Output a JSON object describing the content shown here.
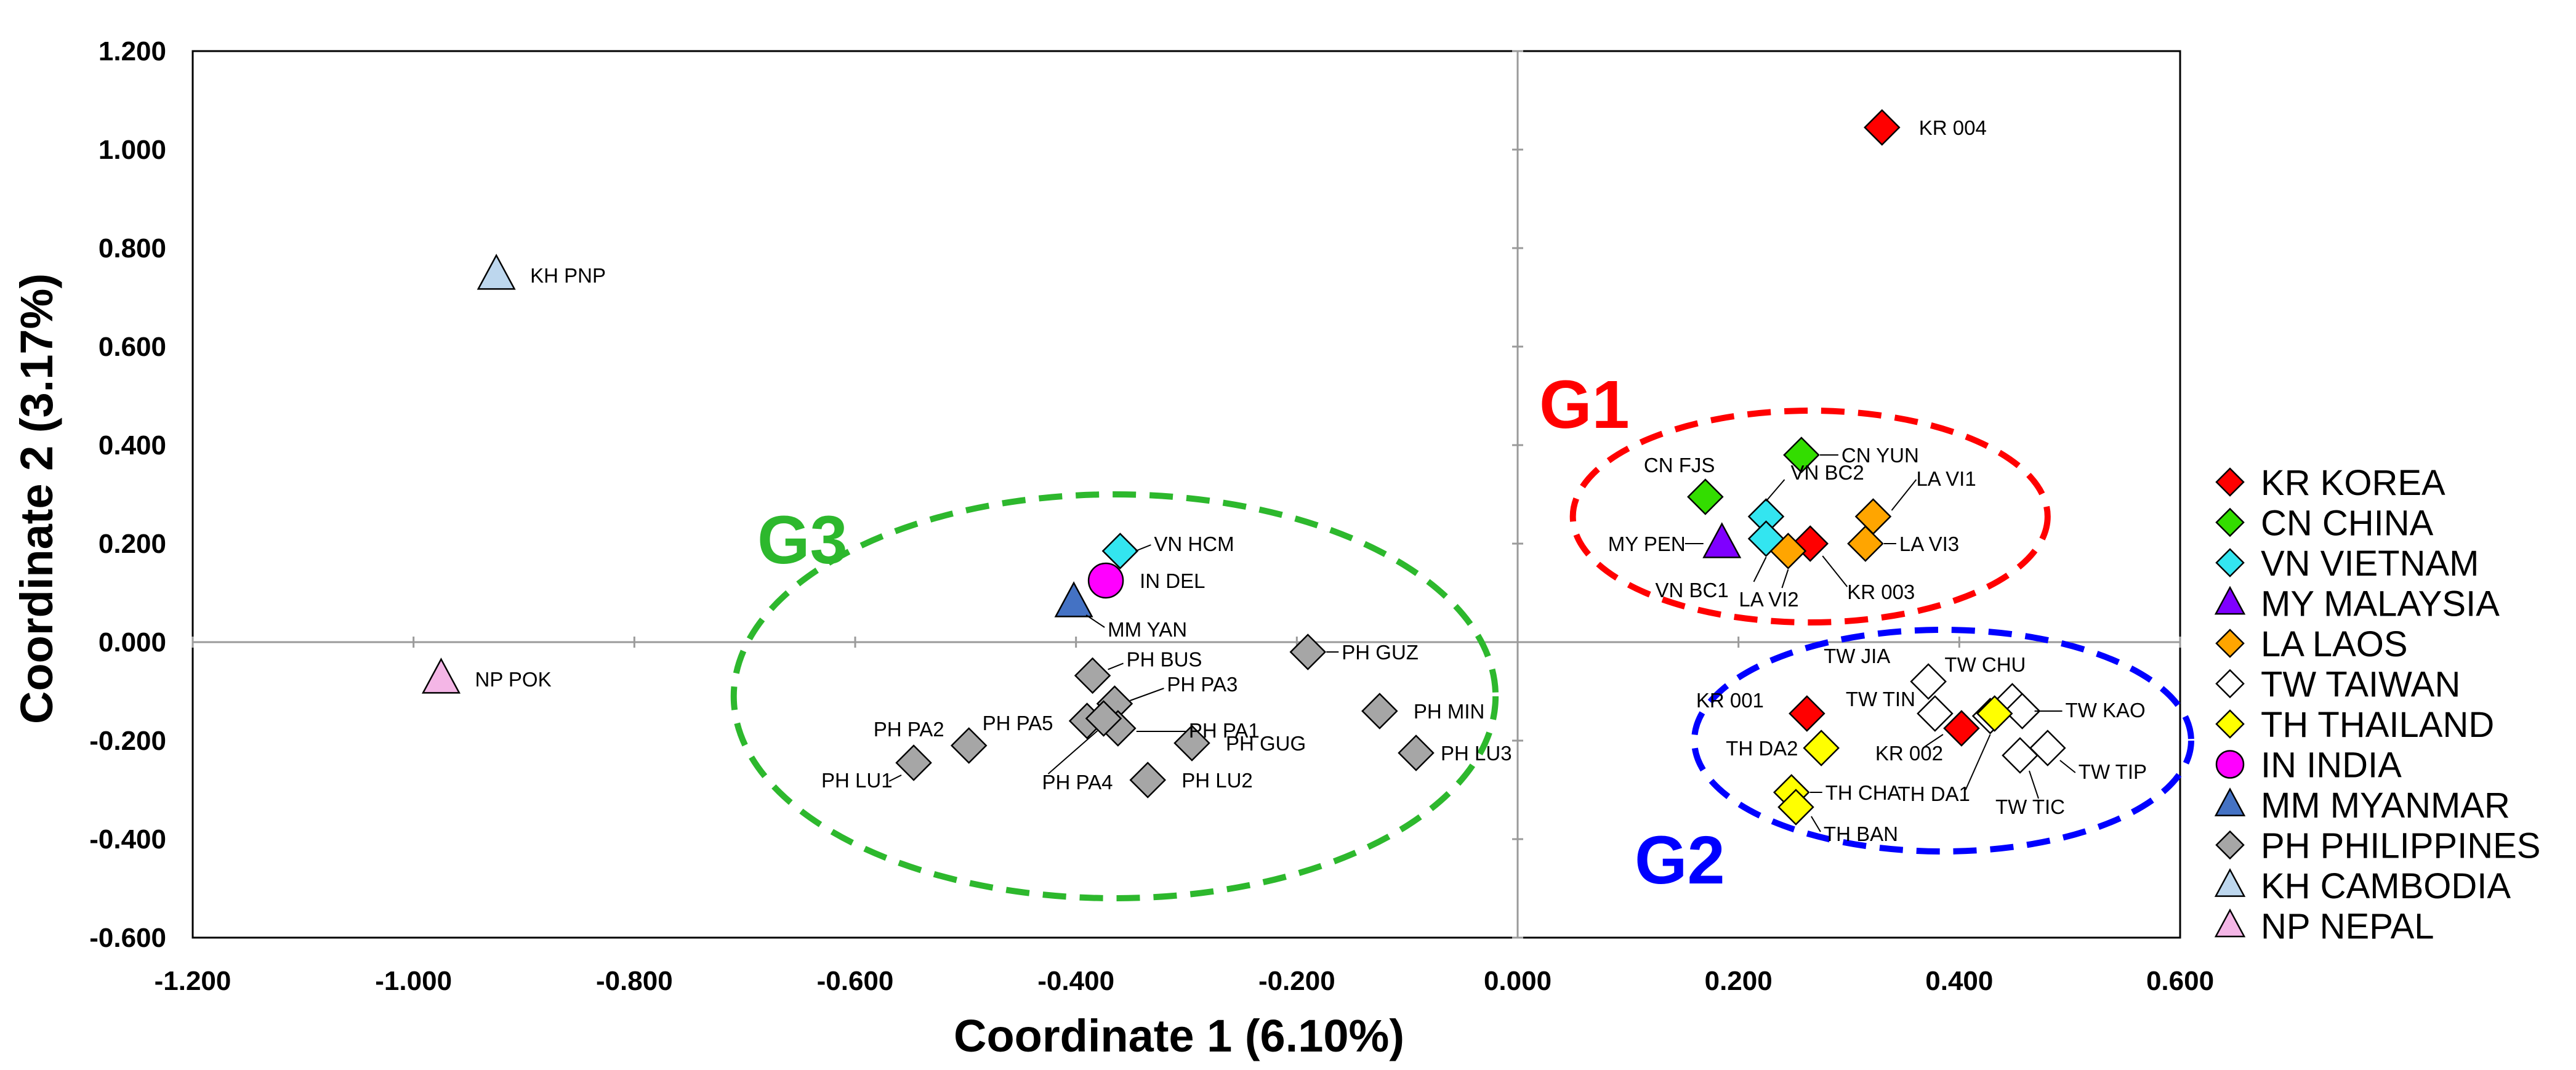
{
  "chart_data": {
    "type": "scatter",
    "title": "",
    "xlabel": "Coordinate 1 (6.10%)",
    "ylabel": "Coordinate 2 (3.17%)",
    "xlim": [
      -1.2,
      0.6
    ],
    "ylim": [
      -0.6,
      1.2
    ],
    "xticks": [
      "-1.200",
      "-1.000",
      "-0.800",
      "-0.600",
      "-0.400",
      "-0.200",
      "0.000",
      "0.200",
      "0.400",
      "0.600"
    ],
    "yticks": [
      "1.200",
      "1.000",
      "0.800",
      "0.600",
      "0.400",
      "0.200",
      "0.000",
      "-0.200",
      "-0.400",
      "-0.600"
    ],
    "legend_position": "right",
    "series": [
      {
        "name": "KR KOREA",
        "marker": "diamond",
        "color": "#FF0000",
        "points": [
          {
            "label": "KR 004",
            "x": 0.33,
            "y": 1.045
          },
          {
            "label": "KR 003",
            "x": 0.265,
            "y": 0.2
          },
          {
            "label": "KR 001",
            "x": 0.262,
            "y": -0.145
          },
          {
            "label": "KR 002",
            "x": 0.402,
            "y": -0.175
          }
        ]
      },
      {
        "name": "CN CHINA",
        "marker": "diamond",
        "color": "#33DD00",
        "points": [
          {
            "label": "CN YUN",
            "x": 0.257,
            "y": 0.38
          },
          {
            "label": "CN FJS",
            "x": 0.17,
            "y": 0.295
          }
        ]
      },
      {
        "name": "VN VIETNAM",
        "marker": "diamond",
        "color": "#33E5F0",
        "points": [
          {
            "label": "VN BC2",
            "x": 0.225,
            "y": 0.255
          },
          {
            "label": "VN BC1",
            "x": 0.225,
            "y": 0.21
          },
          {
            "label": "VN HCM",
            "x": -0.36,
            "y": 0.185
          }
        ]
      },
      {
        "name": "MY MALAYSIA",
        "marker": "triangle",
        "color": "#7F00FF",
        "points": [
          {
            "label": "MY PEN",
            "x": 0.185,
            "y": 0.2
          }
        ]
      },
      {
        "name": "LA LAOS",
        "marker": "diamond",
        "color": "#FFA500",
        "points": [
          {
            "label": "LA VI1",
            "x": 0.322,
            "y": 0.255
          },
          {
            "label": "LA VI2",
            "x": 0.245,
            "y": 0.185
          },
          {
            "label": "LA VI3",
            "x": 0.315,
            "y": 0.2
          }
        ]
      },
      {
        "name": "TW TAIWAN",
        "marker": "diamond",
        "color": "#FFFFFF",
        "points": [
          {
            "label": "TW JIA",
            "x": 0.372,
            "y": -0.08
          },
          {
            "label": "TW TIN",
            "x": 0.378,
            "y": -0.145
          },
          {
            "label": "TW CHU",
            "x": 0.448,
            "y": -0.12
          },
          {
            "label": "TW KAO",
            "x": 0.457,
            "y": -0.14
          },
          {
            "label": "TW TIP",
            "x": 0.48,
            "y": -0.215
          },
          {
            "label": "TW TIC",
            "x": 0.455,
            "y": -0.23
          },
          {
            "label": "TH DA1",
            "x": 0.428,
            "y": -0.15
          }
        ]
      },
      {
        "name": "TH THAILAND",
        "marker": "diamond",
        "color": "#FFFF00",
        "points": [
          {
            "label": "TH DA2",
            "x": 0.275,
            "y": -0.215
          },
          {
            "label": "TH CHA",
            "x": 0.248,
            "y": -0.305
          },
          {
            "label": "TH BAN",
            "x": 0.252,
            "y": -0.335
          },
          {
            "label": "",
            "x": 0.432,
            "y": -0.145
          }
        ]
      },
      {
        "name": "IN INDIA",
        "marker": "circle",
        "color": "#FF00FF",
        "points": [
          {
            "label": "IN DEL",
            "x": -0.373,
            "y": 0.125
          }
        ]
      },
      {
        "name": "MM MYANMAR",
        "marker": "triangle",
        "color": "#4472C4",
        "points": [
          {
            "label": "MM YAN",
            "x": -0.402,
            "y": 0.08
          }
        ]
      },
      {
        "name": "PH PHILIPPINES",
        "marker": "diamond",
        "color": "#A6A6A6",
        "points": [
          {
            "label": "PH GUZ",
            "x": -0.19,
            "y": -0.02
          },
          {
            "label": "PH BUS",
            "x": -0.385,
            "y": -0.068
          },
          {
            "label": "PH PA3",
            "x": -0.365,
            "y": -0.125
          },
          {
            "label": "PH PA5",
            "x": -0.39,
            "y": -0.16
          },
          {
            "label": "PH PA1",
            "x": -0.362,
            "y": -0.175
          },
          {
            "label": "PH PA4",
            "x": -0.375,
            "y": -0.155
          },
          {
            "label": "PH GUG",
            "x": -0.295,
            "y": -0.205
          },
          {
            "label": "PH MIN",
            "x": -0.125,
            "y": -0.14
          },
          {
            "label": "PH LU3",
            "x": -0.092,
            "y": -0.225
          },
          {
            "label": "PH PA2",
            "x": -0.497,
            "y": -0.21
          },
          {
            "label": "PH LU1",
            "x": -0.547,
            "y": -0.245
          },
          {
            "label": "PH LU2",
            "x": -0.335,
            "y": -0.28
          }
        ]
      },
      {
        "name": "KH CAMBODIA",
        "marker": "triangle",
        "color": "#BDD7EE",
        "points": [
          {
            "label": "KH PNP",
            "x": -0.925,
            "y": 0.745
          }
        ]
      },
      {
        "name": "NP NEPAL",
        "marker": "triangle",
        "color": "#F4B6E6",
        "points": [
          {
            "label": "NP POK",
            "x": -0.975,
            "y": -0.075
          }
        ]
      }
    ],
    "groups": [
      {
        "label": "G1",
        "color": "#FF0000",
        "center": [
          0.265,
          0.255
        ],
        "radii": [
          0.215,
          0.215
        ]
      },
      {
        "label": "G2",
        "color": "#0000FF",
        "center": [
          0.385,
          -0.2
        ],
        "radii": [
          0.225,
          0.225
        ]
      },
      {
        "label": "G3",
        "color": "#2DB82D",
        "center": [
          -0.365,
          -0.11
        ],
        "radii": [
          0.345,
          0.41
        ]
      }
    ]
  }
}
